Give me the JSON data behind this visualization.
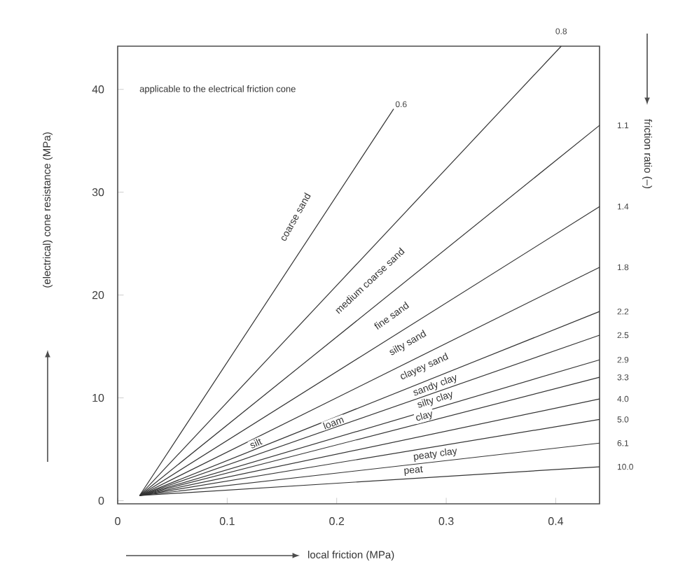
{
  "chart_data": {
    "type": "line",
    "xlabel": "local friction (MPa)",
    "ylabel": "(electrical) cone resistance (MPa)",
    "y2label": "friction ratio (–)",
    "xlim": [
      0,
      0.44
    ],
    "ylim": [
      -0.3,
      44.2
    ],
    "xticks": [
      0,
      0.1,
      0.2,
      0.3,
      0.4
    ],
    "yticks": [
      0,
      10,
      20,
      30,
      40
    ],
    "grid": false,
    "line_style": "solid",
    "marker": "none",
    "series": [
      {
        "name": "0.6",
        "color": "#333333",
        "x": [
          0.02,
          0.252
        ],
        "values": [
          0.5,
          38.1
        ]
      },
      {
        "name": "0.8",
        "color": "#333333",
        "x": [
          0.02,
          0.405
        ],
        "values": [
          0.5,
          44.2
        ]
      },
      {
        "name": "1.1",
        "color": "#333333",
        "x": [
          0.02,
          0.44
        ],
        "values": [
          0.5,
          36.5
        ]
      },
      {
        "name": "1.4",
        "color": "#333333",
        "x": [
          0.02,
          0.44
        ],
        "values": [
          0.5,
          28.6
        ]
      },
      {
        "name": "1.8",
        "color": "#333333",
        "x": [
          0.02,
          0.44
        ],
        "values": [
          0.5,
          22.7
        ]
      },
      {
        "name": "2.2",
        "color": "#333333",
        "x": [
          0.02,
          0.44
        ],
        "values": [
          0.5,
          18.4
        ]
      },
      {
        "name": "2.5",
        "color": "#333333",
        "x": [
          0.02,
          0.44
        ],
        "values": [
          0.5,
          16.1
        ]
      },
      {
        "name": "2.9",
        "color": "#333333",
        "x": [
          0.02,
          0.44
        ],
        "values": [
          0.5,
          13.7
        ]
      },
      {
        "name": "3.3",
        "color": "#333333",
        "x": [
          0.02,
          0.44
        ],
        "values": [
          0.5,
          12.0
        ]
      },
      {
        "name": "4.0",
        "color": "#333333",
        "x": [
          0.02,
          0.44
        ],
        "values": [
          0.5,
          9.9
        ]
      },
      {
        "name": "5.0",
        "color": "#333333",
        "x": [
          0.02,
          0.44
        ],
        "values": [
          0.5,
          7.9
        ]
      },
      {
        "name": "6.1",
        "color": "#333333",
        "x": [
          0.02,
          0.44
        ],
        "values": [
          0.5,
          5.6
        ]
      },
      {
        "name": "10.0",
        "color": "#333333",
        "x": [
          0.02,
          0.44
        ],
        "values": [
          0.5,
          3.3
        ]
      }
    ],
    "annotations": [
      "applicable to the electrical friction cone",
      "coarse sand",
      "medium coarse sand",
      "fine sand",
      "silty sand",
      "clayey sand",
      "sandy clay",
      "silty clay",
      "clay",
      "peaty clay",
      "peat",
      "loam",
      "silt"
    ]
  }
}
